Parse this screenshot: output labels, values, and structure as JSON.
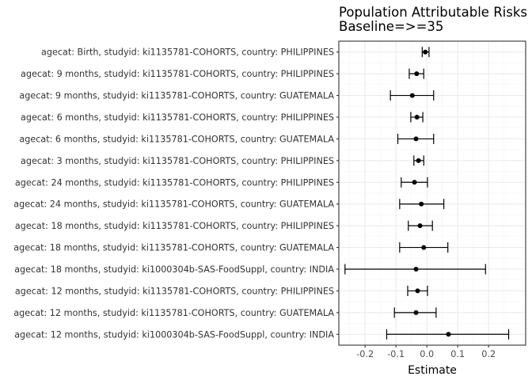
{
  "chart_data": {
    "type": "forest",
    "title": "Population Attributable Risks",
    "subtitle": "Baseline=>=35",
    "xlabel": "Estimate",
    "ylabel": "",
    "xlim": [
      -0.285,
      0.32
    ],
    "x_ticks": [
      -0.2,
      -0.1,
      0.0,
      0.1,
      0.2
    ],
    "x_tick_labels": [
      "-0.2",
      "-0.1",
      "0.0",
      "0.1",
      "0.2"
    ],
    "grid": true,
    "colors": {
      "panel_border": "#333333",
      "grid_major": "#ebebeb",
      "grid_minor": "#f5f5f5",
      "marks": "#000000"
    },
    "rows": [
      {
        "label": "agecat: Birth, studyid: ki1135781-COHORTS, country: PHILIPPINES",
        "estimate": -0.005,
        "lower": -0.015,
        "upper": 0.007
      },
      {
        "label": "agecat: 9 months, studyid: ki1135781-COHORTS, country: PHILIPPINES",
        "estimate": -0.033,
        "lower": -0.057,
        "upper": -0.01
      },
      {
        "label": "agecat: 9 months, studyid: ki1135781-COHORTS, country: GUATEMALA",
        "estimate": -0.047,
        "lower": -0.118,
        "upper": 0.022
      },
      {
        "label": "agecat: 6 months, studyid: ki1135781-COHORTS, country: PHILIPPINES",
        "estimate": -0.032,
        "lower": -0.052,
        "upper": -0.013
      },
      {
        "label": "agecat: 6 months, studyid: ki1135781-COHORTS, country: GUATEMALA",
        "estimate": -0.035,
        "lower": -0.094,
        "upper": 0.022
      },
      {
        "label": "agecat: 3 months, studyid: ki1135781-COHORTS, country: PHILIPPINES",
        "estimate": -0.027,
        "lower": -0.042,
        "upper": -0.01
      },
      {
        "label": "agecat: 24 months, studyid: ki1135781-COHORTS, country: PHILIPPINES",
        "estimate": -0.04,
        "lower": -0.083,
        "upper": 0.002
      },
      {
        "label": "agecat: 24 months, studyid: ki1135781-COHORTS, country: GUATEMALA",
        "estimate": -0.018,
        "lower": -0.088,
        "upper": 0.055
      },
      {
        "label": "agecat: 18 months, studyid: ki1135781-COHORTS, country: PHILIPPINES",
        "estimate": -0.022,
        "lower": -0.06,
        "upper": 0.018
      },
      {
        "label": "agecat: 18 months, studyid: ki1135781-COHORTS, country: GUATEMALA",
        "estimate": -0.01,
        "lower": -0.088,
        "upper": 0.068
      },
      {
        "label": "agecat: 18 months, studyid: ki1000304b-SAS-FoodSuppl, country: INDIA",
        "estimate": -0.035,
        "lower": -0.265,
        "upper": 0.19
      },
      {
        "label": "agecat: 12 months, studyid: ki1135781-COHORTS, country: PHILIPPINES",
        "estimate": -0.03,
        "lower": -0.062,
        "upper": 0.002
      },
      {
        "label": "agecat: 12 months, studyid: ki1135781-COHORTS, country: GUATEMALA",
        "estimate": -0.035,
        "lower": -0.105,
        "upper": 0.03
      },
      {
        "label": "agecat: 12 months, studyid: ki1000304b-SAS-FoodSuppl, country: INDIA",
        "estimate": 0.07,
        "lower": -0.13,
        "upper": 0.265
      }
    ]
  }
}
